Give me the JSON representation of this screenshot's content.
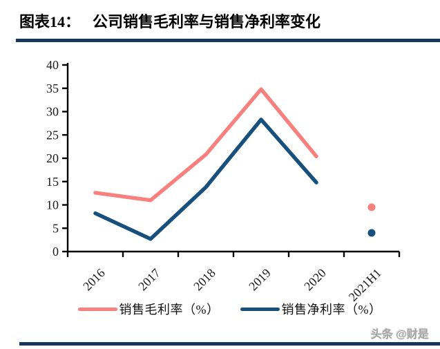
{
  "header": {
    "figure_label": "图表14：",
    "title": "公司销售毛利率与销售净利率变化"
  },
  "accent_colors": {
    "rule": "#17375E",
    "gross_margin_line": "#F8807F",
    "net_margin_line": "#17507C"
  },
  "watermark": "头条 @财是",
  "chart_data": {
    "type": "line",
    "title": "公司销售毛利率与销售净利率变化",
    "categories": [
      "2016",
      "2017",
      "2018",
      "2019",
      "2020",
      "2021H1"
    ],
    "series": [
      {
        "name": "销售毛利率（%）",
        "color": "#F8807F",
        "values": [
          12.6,
          11.0,
          20.8,
          34.8,
          20.4,
          9.5
        ]
      },
      {
        "name": "销售净利率（%）",
        "color": "#17507C",
        "values": [
          8.2,
          2.7,
          13.8,
          28.3,
          14.8,
          4.0
        ]
      }
    ],
    "ylim": [
      0,
      40
    ],
    "ytick_step": 5,
    "xlabel": "",
    "ylabel": "",
    "grid": false,
    "legend_position": "bottom",
    "isolated_last_point": true,
    "x_tick_label_rotation": -45
  }
}
